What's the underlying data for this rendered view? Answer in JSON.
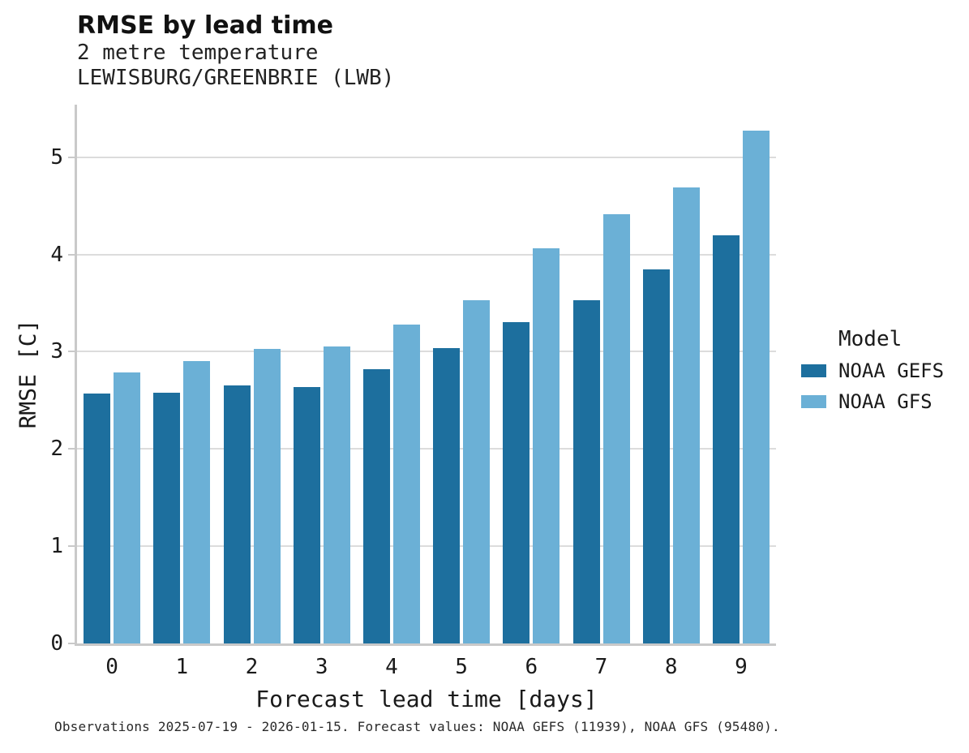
{
  "chart_data": {
    "type": "bar",
    "title": "RMSE by lead time",
    "subtitle": [
      "2 metre temperature",
      "LEWISBURG/GREENBRIE (LWB)"
    ],
    "xlabel": "Forecast lead time [days]",
    "ylabel": "RMSE [C]",
    "categories": [
      "0",
      "1",
      "2",
      "3",
      "4",
      "5",
      "6",
      "7",
      "8",
      "9"
    ],
    "series": [
      {
        "name": "NOAA GEFS",
        "color": "#1d6f9e",
        "values": [
          2.57,
          2.58,
          2.65,
          2.64,
          2.82,
          3.04,
          3.3,
          3.53,
          3.85,
          4.2
        ]
      },
      {
        "name": "NOAA GFS",
        "color": "#6bb0d6",
        "values": [
          2.79,
          2.9,
          3.03,
          3.05,
          3.28,
          3.53,
          4.06,
          4.41,
          4.69,
          5.27
        ]
      }
    ],
    "ylim": [
      0,
      5.54
    ],
    "yticks": [
      0,
      1,
      2,
      3,
      4,
      5
    ],
    "grid": "horizontal",
    "legend_title": "Model",
    "legend_position": "right"
  },
  "caption": {
    "text": "Observations 2025-07-19 - 2026-01-15. Forecast values: NOAA GEFS (11939), NOAA GFS (95480)."
  }
}
